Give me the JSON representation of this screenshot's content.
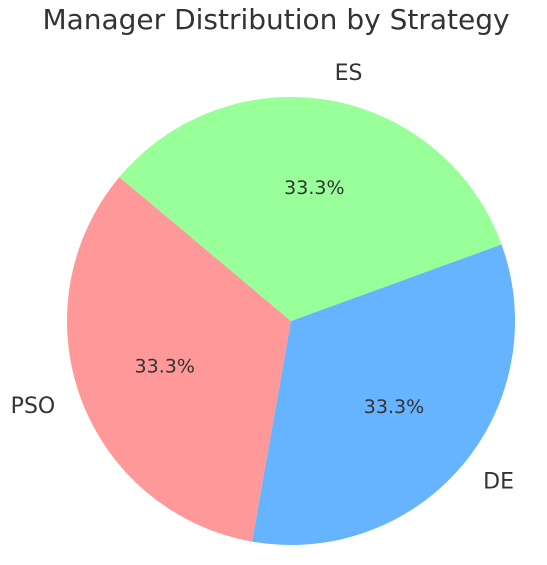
{
  "chart_data": {
    "type": "pie",
    "title": "Manager Distribution by Strategy",
    "categories": [
      "PSO",
      "DE",
      "ES"
    ],
    "values": [
      1,
      1,
      1
    ],
    "percent_labels": [
      "33.3%",
      "33.3%",
      "33.3%"
    ],
    "colors": [
      "#ff9999",
      "#66b3ff",
      "#99ff99"
    ],
    "start_angle_deg": 140,
    "direction": "counterclockwise",
    "legend": "none"
  }
}
